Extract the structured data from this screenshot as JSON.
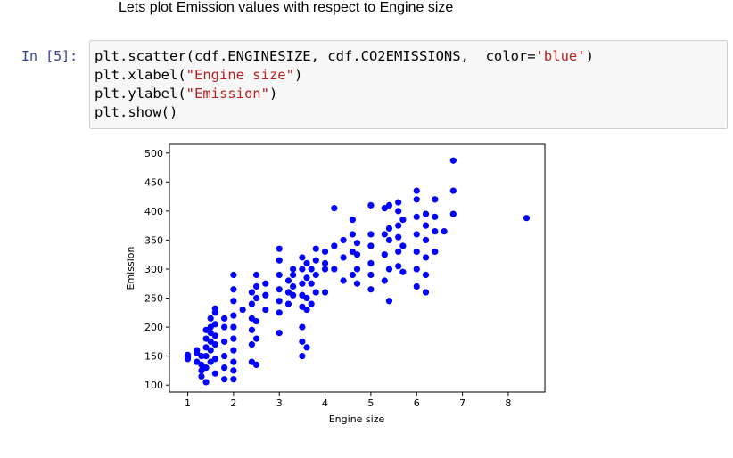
{
  "markdown": "Lets plot Emission values with respect to Engine size",
  "cell": {
    "prompt": "In [5]:",
    "code": [
      [
        "plt.scatter(cdf.ENGINESIZE, cdf.CO2EMISSIONS,  color=",
        "'blue'",
        ")"
      ],
      [
        "plt.xlabel(",
        "\"Engine size\"",
        ")"
      ],
      [
        "plt.ylabel(",
        "\"Emission\"",
        ")"
      ],
      [
        "plt.show()"
      ]
    ]
  },
  "chart_data": {
    "type": "scatter",
    "xlabel": "Engine size",
    "ylabel": "Emission",
    "xlim": [
      0.6,
      8.8
    ],
    "ylim": [
      88,
      515
    ],
    "xticks": [
      1,
      2,
      3,
      4,
      5,
      6,
      7,
      8
    ],
    "yticks": [
      100,
      150,
      200,
      250,
      300,
      350,
      400,
      450,
      500
    ],
    "series": [
      {
        "color": "blue",
        "x": [
          1.0,
          1.0,
          1.0,
          1.2,
          1.2,
          1.2,
          1.3,
          1.3,
          1.3,
          1.3,
          1.4,
          1.4,
          1.4,
          1.4,
          1.4,
          1.4,
          1.5,
          1.5,
          1.5,
          1.5,
          1.5,
          1.5,
          1.6,
          1.6,
          1.6,
          1.6,
          1.6,
          1.6,
          1.6,
          1.8,
          1.8,
          1.8,
          1.8,
          1.8,
          1.8,
          2.0,
          2.0,
          2.0,
          2.0,
          2.0,
          2.0,
          2.0,
          2.0,
          2.0,
          2.0,
          2.2,
          2.4,
          2.4,
          2.4,
          2.4,
          2.4,
          2.4,
          2.5,
          2.5,
          2.5,
          2.5,
          2.5,
          2.5,
          2.7,
          2.7,
          2.7,
          3.0,
          3.0,
          3.0,
          3.0,
          3.0,
          3.0,
          3.0,
          3.2,
          3.2,
          3.2,
          3.3,
          3.3,
          3.3,
          3.3,
          3.5,
          3.5,
          3.5,
          3.5,
          3.5,
          3.5,
          3.5,
          3.5,
          3.6,
          3.6,
          3.6,
          3.6,
          3.6,
          3.7,
          3.7,
          3.7,
          3.8,
          3.8,
          3.8,
          3.8,
          4.0,
          4.0,
          4.0,
          4.0,
          4.2,
          4.2,
          4.2,
          4.4,
          4.4,
          4.4,
          4.6,
          4.6,
          4.6,
          4.6,
          4.7,
          4.7,
          4.7,
          4.7,
          5.0,
          5.0,
          5.0,
          5.0,
          5.0,
          5.0,
          5.3,
          5.3,
          5.3,
          5.3,
          5.4,
          5.4,
          5.4,
          5.4,
          5.4,
          5.6,
          5.6,
          5.6,
          5.6,
          5.6,
          5.6,
          5.7,
          5.7,
          5.7,
          6.0,
          6.0,
          6.0,
          6.0,
          6.0,
          6.0,
          6.0,
          6.2,
          6.2,
          6.2,
          6.2,
          6.2,
          6.2,
          6.4,
          6.4,
          6.4,
          6.4,
          6.6,
          6.8,
          6.8,
          6.8,
          8.4
        ],
        "y": [
          148,
          152,
          145,
          140,
          155,
          160,
          115,
          125,
          135,
          150,
          105,
          130,
          150,
          165,
          180,
          195,
          140,
          160,
          175,
          190,
          200,
          215,
          120,
          145,
          170,
          185,
          205,
          225,
          232,
          110,
          130,
          150,
          175,
          200,
          215,
          110,
          125,
          140,
          160,
          180,
          200,
          220,
          245,
          265,
          290,
          230,
          140,
          170,
          195,
          215,
          240,
          260,
          135,
          180,
          210,
          250,
          270,
          290,
          230,
          255,
          275,
          190,
          225,
          245,
          265,
          290,
          315,
          335,
          240,
          260,
          280,
          255,
          270,
          290,
          300,
          150,
          175,
          200,
          235,
          255,
          275,
          300,
          320,
          165,
          230,
          250,
          285,
          310,
          240,
          275,
          300,
          260,
          290,
          315,
          335,
          260,
          300,
          310,
          330,
          300,
          340,
          405,
          280,
          320,
          350,
          290,
          330,
          360,
          385,
          275,
          300,
          325,
          345,
          265,
          290,
          310,
          340,
          360,
          410,
          280,
          325,
          360,
          405,
          245,
          300,
          350,
          370,
          410,
          305,
          330,
          355,
          375,
          400,
          415,
          295,
          340,
          385,
          270,
          300,
          330,
          360,
          390,
          420,
          435,
          260,
          290,
          320,
          350,
          375,
          395,
          330,
          365,
          390,
          420,
          365,
          395,
          435,
          487,
          388
        ]
      }
    ]
  }
}
